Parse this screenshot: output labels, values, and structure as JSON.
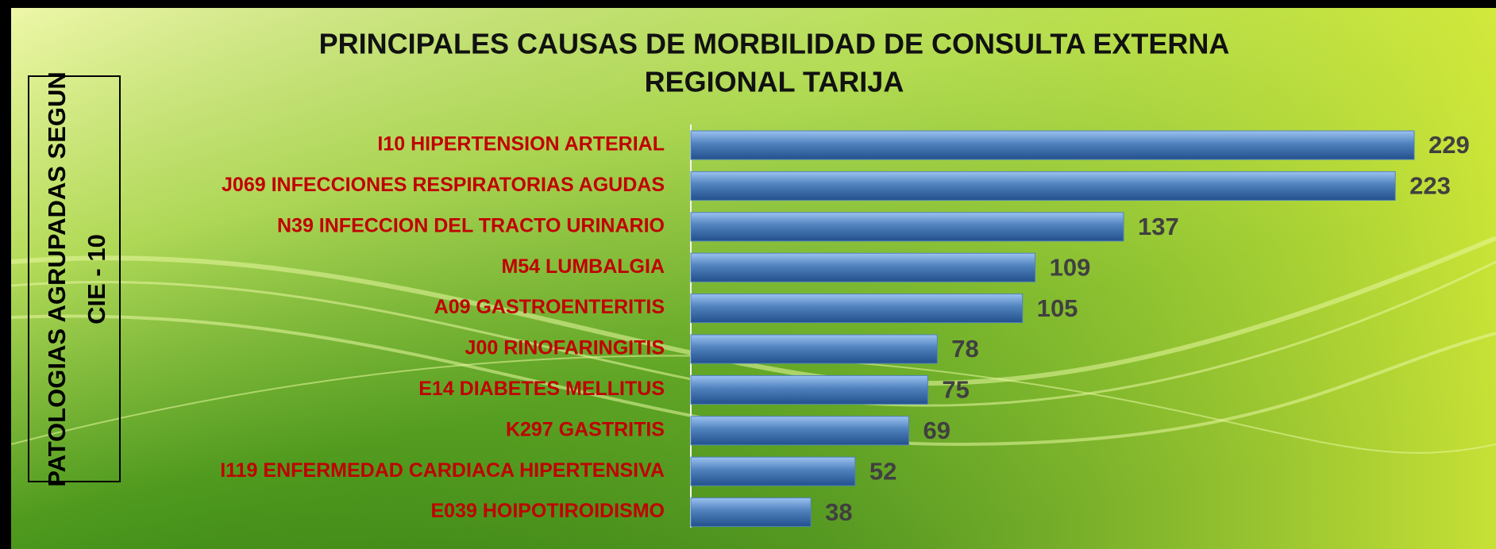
{
  "chart_data": {
    "type": "bar",
    "orientation": "horizontal",
    "title": [
      "PRINCIPALES CAUSAS DE MORBILIDAD DE CONSULTA  EXTERNA",
      "REGIONAL TARIJA"
    ],
    "ylabel": [
      "PATOLOGIAS AGRUPADAS SEGUN",
      "CIE - 10"
    ],
    "categories": [
      "I10  HIPERTENSION ARTERIAL",
      "J069  INFECCIONES RESPIRATORIAS AGUDAS",
      "N39  INFECCION DEL TRACTO URINARIO",
      "M54  LUMBALGIA",
      "A09  GASTROENTERITIS",
      "J00  RINOFARINGITIS",
      "E14  DIABETES MELLITUS",
      "K297  GASTRITIS",
      "I119  ENFERMEDAD CARDIACA HIPERTENSIVA",
      "E039  HOIPOTIROIDISMO"
    ],
    "values": [
      229,
      223,
      137,
      109,
      105,
      78,
      75,
      69,
      52,
      38
    ],
    "color": "#4f81bd"
  }
}
